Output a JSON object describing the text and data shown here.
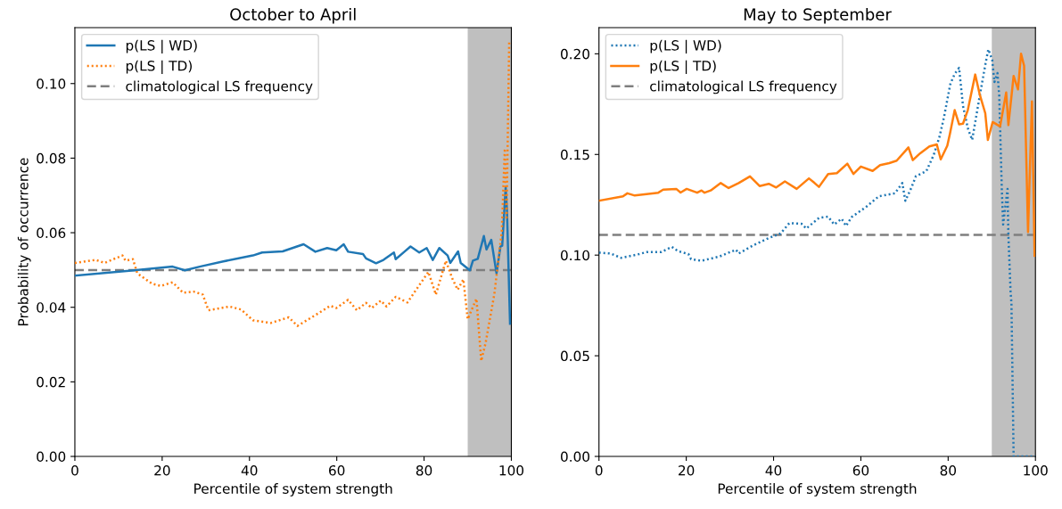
{
  "chart_data": [
    {
      "type": "line",
      "title": "October to April",
      "xlabel": "Percentile of system strength",
      "ylabel": "Probability of occurrence",
      "xlim": [
        0,
        100
      ],
      "xticks": [
        0,
        20,
        40,
        60,
        80,
        100
      ],
      "ylim": [
        0,
        0.115
      ],
      "yticks": [
        {
          "value": 0,
          "label": "0.00"
        },
        {
          "value": 0.02,
          "label": "0.02"
        },
        {
          "value": 0.04,
          "label": "0.04"
        },
        {
          "value": 0.06,
          "label": "0.06"
        },
        {
          "value": 0.08,
          "label": "0.08"
        },
        {
          "value": 0.1,
          "label": "0.10"
        }
      ],
      "grid": false,
      "legend": "top left",
      "marker": "none",
      "bands": [
        {
          "axis": "x",
          "from": 90,
          "to": 100,
          "color": "#bfbfbf"
        }
      ],
      "ref_lines": [
        {
          "axis": "y",
          "value": 0.05,
          "label": "climatological LS frequency",
          "color": "#7f7f7f",
          "line_style": "dashed"
        }
      ],
      "series": [
        {
          "name": "p(LS | WD)",
          "color": "#1f77b4",
          "line_style": "solid",
          "x": [
            0,
            13.6,
            22.4,
            25.2,
            28.6,
            34,
            40.8,
            42.9,
            47.6,
            52.4,
            55.1,
            57.8,
            59.9,
            61.6,
            62.6,
            66,
            66.7,
            69,
            70.7,
            73.1,
            73.5,
            75.5,
            76.9,
            78.9,
            80.6,
            82,
            83.5,
            85.4,
            86,
            87.8,
            88.4,
            90.5,
            91.2,
            92.3,
            93.7,
            94.3,
            95.4,
            96.6,
            97.5,
            97.9,
            98.7,
            99,
            99.7
          ],
          "values": [
            0.0485,
            0.0499,
            0.0509,
            0.0499,
            0.0509,
            0.0523,
            0.0539,
            0.0547,
            0.055,
            0.0569,
            0.0549,
            0.0559,
            0.0553,
            0.0569,
            0.0549,
            0.0543,
            0.0531,
            0.0518,
            0.0527,
            0.0547,
            0.0529,
            0.0549,
            0.0563,
            0.0547,
            0.0559,
            0.0527,
            0.0559,
            0.0539,
            0.0519,
            0.055,
            0.0519,
            0.0499,
            0.0525,
            0.053,
            0.0591,
            0.0555,
            0.0581,
            0.0491,
            0.0563,
            0.0565,
            0.0722,
            0.0659,
            0.0356
          ]
        },
        {
          "name": "p(LS | TD)",
          "color": "#ff7f0e",
          "line_style": "dotted",
          "x": [
            0,
            4.8,
            6.8,
            10.9,
            11.6,
            13.3,
            14.3,
            17.7,
            19.7,
            20.7,
            22.4,
            24.8,
            27.2,
            29.3,
            30.6,
            35.4,
            38.1,
            40.8,
            44.9,
            49,
            51,
            55.8,
            58.5,
            59.9,
            62.6,
            64.6,
            66.7,
            68,
            70.1,
            71.4,
            73.5,
            76.2,
            77.6,
            81,
            82.7,
            85,
            86.4,
            87.7,
            89,
            90,
            92,
            93.1,
            94.1,
            96.1,
            97.8,
            98.5,
            98.9,
            99.5
          ],
          "values": [
            0.0519,
            0.0527,
            0.0519,
            0.0539,
            0.0525,
            0.0529,
            0.0491,
            0.0463,
            0.0457,
            0.0461,
            0.0467,
            0.0439,
            0.0442,
            0.0434,
            0.0392,
            0.0402,
            0.0394,
            0.0365,
            0.0358,
            0.0373,
            0.035,
            0.0384,
            0.0404,
            0.0398,
            0.042,
            0.0392,
            0.0412,
            0.0398,
            0.0418,
            0.0402,
            0.0428,
            0.0413,
            0.0437,
            0.0495,
            0.0434,
            0.0525,
            0.0479,
            0.0447,
            0.0475,
            0.0368,
            0.0423,
            0.0256,
            0.0304,
            0.0435,
            0.0603,
            0.0826,
            0.0635,
            0.111
          ]
        }
      ]
    },
    {
      "type": "line",
      "title": "May to September",
      "xlabel": "Percentile of system strength",
      "xlim": [
        0,
        100
      ],
      "xticks": [
        0,
        20,
        40,
        60,
        80,
        100
      ],
      "ylim": [
        0,
        0.213
      ],
      "yticks": [
        {
          "value": 0,
          "label": "0.00"
        },
        {
          "value": 0.05,
          "label": "0.05"
        },
        {
          "value": 0.1,
          "label": "0.10"
        },
        {
          "value": 0.15,
          "label": "0.15"
        },
        {
          "value": 0.2,
          "label": "0.20"
        }
      ],
      "grid": false,
      "legend": "top left",
      "marker": "none",
      "bands": [
        {
          "axis": "x",
          "from": 90,
          "to": 100,
          "color": "#bfbfbf"
        }
      ],
      "ref_lines": [
        {
          "axis": "y",
          "value": 0.11,
          "label": "climatological LS frequency",
          "color": "#7f7f7f",
          "line_style": "dashed"
        }
      ],
      "series": [
        {
          "name": "p(LS | WD)",
          "color": "#1f77b4",
          "line_style": "dotted",
          "x": [
            0,
            2.7,
            5.1,
            9.2,
            10.9,
            14.3,
            16.7,
            18.1,
            20.5,
            21.1,
            23.5,
            27.6,
            31.4,
            32,
            35.4,
            38.9,
            41.6,
            43.6,
            46.4,
            47.5,
            50.4,
            52.5,
            53.9,
            55.6,
            56.6,
            57.9,
            61.3,
            64.1,
            67.8,
            69.5,
            70.2,
            71.6,
            72.6,
            75,
            76.7,
            78,
            79,
            80.5,
            81.5,
            82.5,
            83.4,
            84.5,
            85.5,
            86.2,
            87.5,
            88.6,
            89.2,
            90.1,
            90.6,
            91.3,
            91.7,
            92.3,
            92.6,
            93.6,
            93.8,
            94.3,
            94.5,
            95,
            100
          ],
          "values": [
            0.1012,
            0.1008,
            0.0986,
            0.1005,
            0.1015,
            0.1015,
            0.1041,
            0.102,
            0.1005,
            0.098,
            0.0972,
            0.0993,
            0.1027,
            0.1008,
            0.1049,
            0.1085,
            0.1107,
            0.1159,
            0.1156,
            0.1132,
            0.1185,
            0.1191,
            0.1152,
            0.1181,
            0.1145,
            0.1189,
            0.1241,
            0.1292,
            0.1307,
            0.1358,
            0.127,
            0.1336,
            0.1392,
            0.1417,
            0.1498,
            0.1587,
            0.168,
            0.185,
            0.19,
            0.193,
            0.1742,
            0.1631,
            0.1572,
            0.1661,
            0.1823,
            0.1956,
            0.2022,
            0.197,
            0.186,
            0.1904,
            0.1793,
            0.1322,
            0.1152,
            0.1329,
            0.11,
            0.082,
            0.0761,
            0.0,
            0.0
          ]
        },
        {
          "name": "p(LS | TD)",
          "color": "#ff7f0e",
          "line_style": "solid",
          "x": [
            0,
            5.5,
            6.5,
            8.2,
            13.6,
            14.7,
            17.7,
            18.7,
            20.1,
            22.5,
            23.5,
            24.2,
            25.6,
            27.9,
            29.7,
            32,
            34.6,
            36.8,
            38.9,
            40.6,
            42.6,
            45.3,
            48.1,
            49.4,
            50.4,
            52.5,
            54.5,
            56.9,
            58.3,
            60,
            62.7,
            64.4,
            66.5,
            68.2,
            70.9,
            71.9,
            73.6,
            75.7,
            77.4,
            78.3,
            79.8,
            80.4,
            81.5,
            82.5,
            83.4,
            84.5,
            86.2,
            87.2,
            88.5,
            89.1,
            90.2,
            91.9,
            93.3,
            93.8,
            95,
            96,
            96.7,
            97.4,
            98.3,
            99.2,
            99.8
          ],
          "values": [
            0.127,
            0.1292,
            0.1307,
            0.1296,
            0.131,
            0.1325,
            0.1329,
            0.1311,
            0.1329,
            0.131,
            0.1321,
            0.131,
            0.1321,
            0.1358,
            0.1333,
            0.1358,
            0.1391,
            0.1343,
            0.1354,
            0.1336,
            0.1366,
            0.1329,
            0.1381,
            0.1358,
            0.1339,
            0.1403,
            0.1407,
            0.1454,
            0.1403,
            0.144,
            0.1418,
            0.1447,
            0.1457,
            0.1469,
            0.1535,
            0.1472,
            0.1506,
            0.154,
            0.155,
            0.1476,
            0.1543,
            0.1602,
            0.172,
            0.165,
            0.1653,
            0.172,
            0.1897,
            0.1801,
            0.1705,
            0.1572,
            0.1661,
            0.1639,
            0.1808,
            0.1646,
            0.189,
            0.1823,
            0.2,
            0.1941,
            0.1115,
            0.1764,
            0.0997
          ]
        }
      ]
    }
  ]
}
